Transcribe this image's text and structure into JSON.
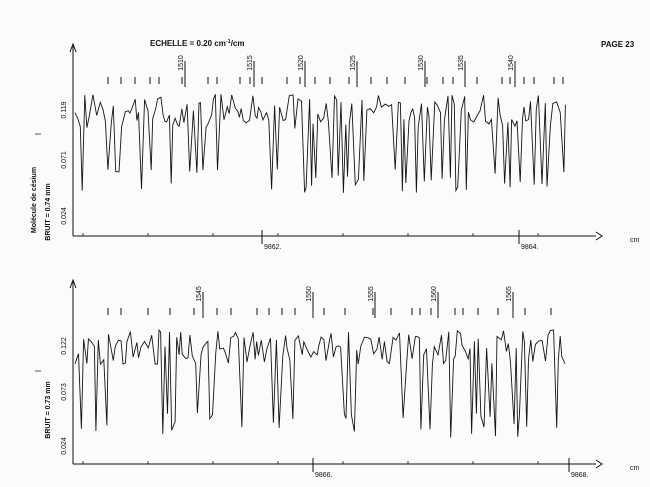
{
  "header": {
    "scale_label": "ECHELLE = 0.20 cm",
    "scale_superscript": "-1",
    "scale_suffix": "/cm",
    "page_label": "PAGE 23"
  },
  "chart_data": [
    {
      "type": "line",
      "molecule_label": "Molécule de césium",
      "noise_label": "BRUIT = 0.74 mm",
      "intensity_symbol": "I",
      "y_ticks": [
        "0.119",
        "0.071",
        "0.024"
      ],
      "x_tick_labels": [
        "9862.",
        "9864."
      ],
      "x_unit": "cm",
      "line_numbers": [
        "1510",
        "1515",
        "1520",
        "1525",
        "1530",
        "1535",
        "1540"
      ],
      "annotation": "spectral lines"
    },
    {
      "type": "line",
      "noise_label": "BRUIT = 0.73 mm",
      "intensity_symbol": "I",
      "y_ticks": [
        "0.122",
        "0.073",
        "0.024"
      ],
      "x_tick_labels": [
        "9866.",
        "9868."
      ],
      "x_unit": "cm",
      "line_numbers": [
        "1545",
        "1550",
        "1555",
        "1560",
        "1565"
      ]
    }
  ]
}
